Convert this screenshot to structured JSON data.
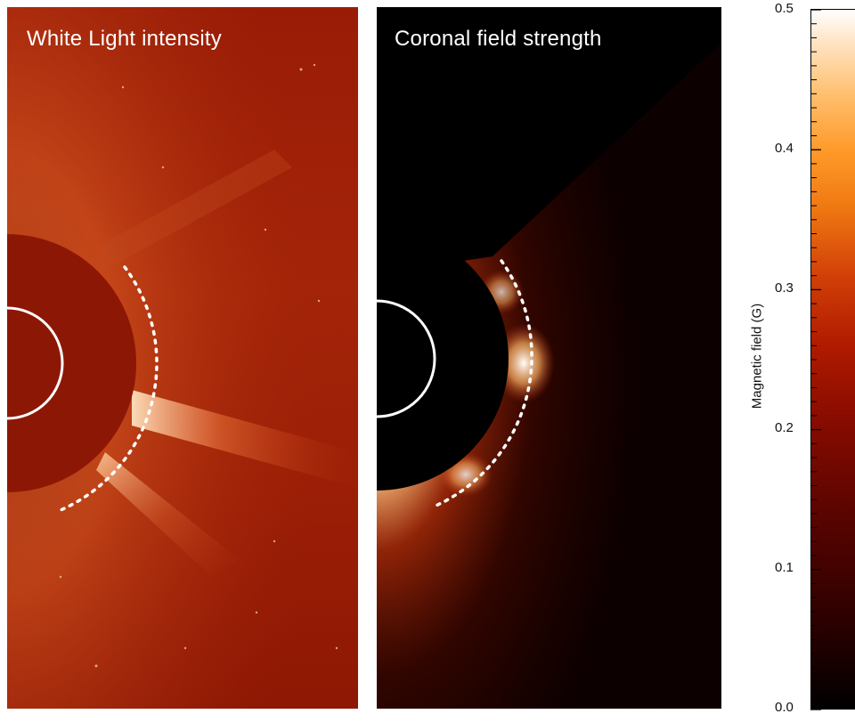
{
  "panels": [
    {
      "title": "White Light intensity"
    },
    {
      "title": "Coronal field strength"
    }
  ],
  "colorbar": {
    "label": "Magnetic field (G)",
    "range": [
      0.0,
      0.5
    ],
    "ticks": [
      "0.5",
      "0.4",
      "0.3",
      "0.2",
      "0.1",
      "0.0"
    ],
    "colormap": "black-red-orange-white"
  },
  "colors": {
    "left_background": "#9f2107",
    "occulter_left": "#8c1604",
    "right_background": "#000000",
    "circle_stroke": "#ffffff"
  }
}
